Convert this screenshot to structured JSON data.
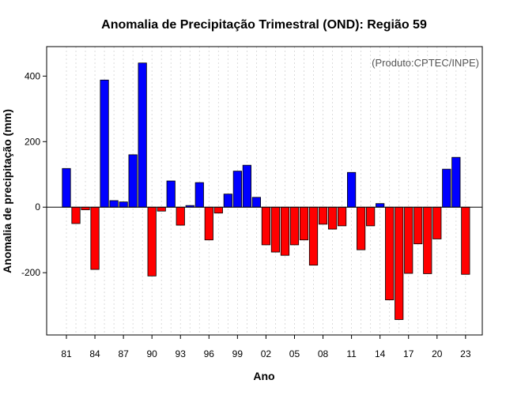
{
  "chart_data": {
    "type": "bar",
    "title": "Anomalia de Precipitação Trimestral (OND): Região 59",
    "xlabel": "Ano",
    "ylabel": "Anomalia de precipitação (mm)",
    "credit": "(Produto:CPTEC/INPE)",
    "ylim": [
      -390,
      490
    ],
    "yticks": [
      -200,
      0,
      200,
      400
    ],
    "categories": [
      "81",
      "82",
      "83",
      "84",
      "85",
      "86",
      "87",
      "88",
      "89",
      "90",
      "91",
      "92",
      "93",
      "94",
      "95",
      "96",
      "97",
      "98",
      "99",
      "00",
      "01",
      "02",
      "03",
      "04",
      "05",
      "06",
      "07",
      "08",
      "09",
      "10",
      "11",
      "12",
      "13",
      "14",
      "15",
      "16",
      "17",
      "18",
      "19",
      "20",
      "21",
      "22",
      "23"
    ],
    "xtick_labels": [
      "81",
      "84",
      "87",
      "90",
      "93",
      "96",
      "99",
      "02",
      "05",
      "08",
      "11",
      "14",
      "17",
      "20",
      "23"
    ],
    "values": [
      118,
      -50,
      -8,
      -190,
      388,
      20,
      16,
      160,
      440,
      -210,
      -12,
      80,
      -55,
      5,
      75,
      -100,
      -18,
      40,
      110,
      128,
      30,
      -115,
      -137,
      -147,
      -115,
      -100,
      -177,
      -52,
      -67,
      -57,
      106,
      -130,
      -57,
      11,
      -283,
      -343,
      -202,
      -112,
      -203,
      -97,
      116,
      152,
      -205
    ],
    "positive_color": "#0000ff",
    "negative_color": "#ff0000",
    "grid": true
  }
}
